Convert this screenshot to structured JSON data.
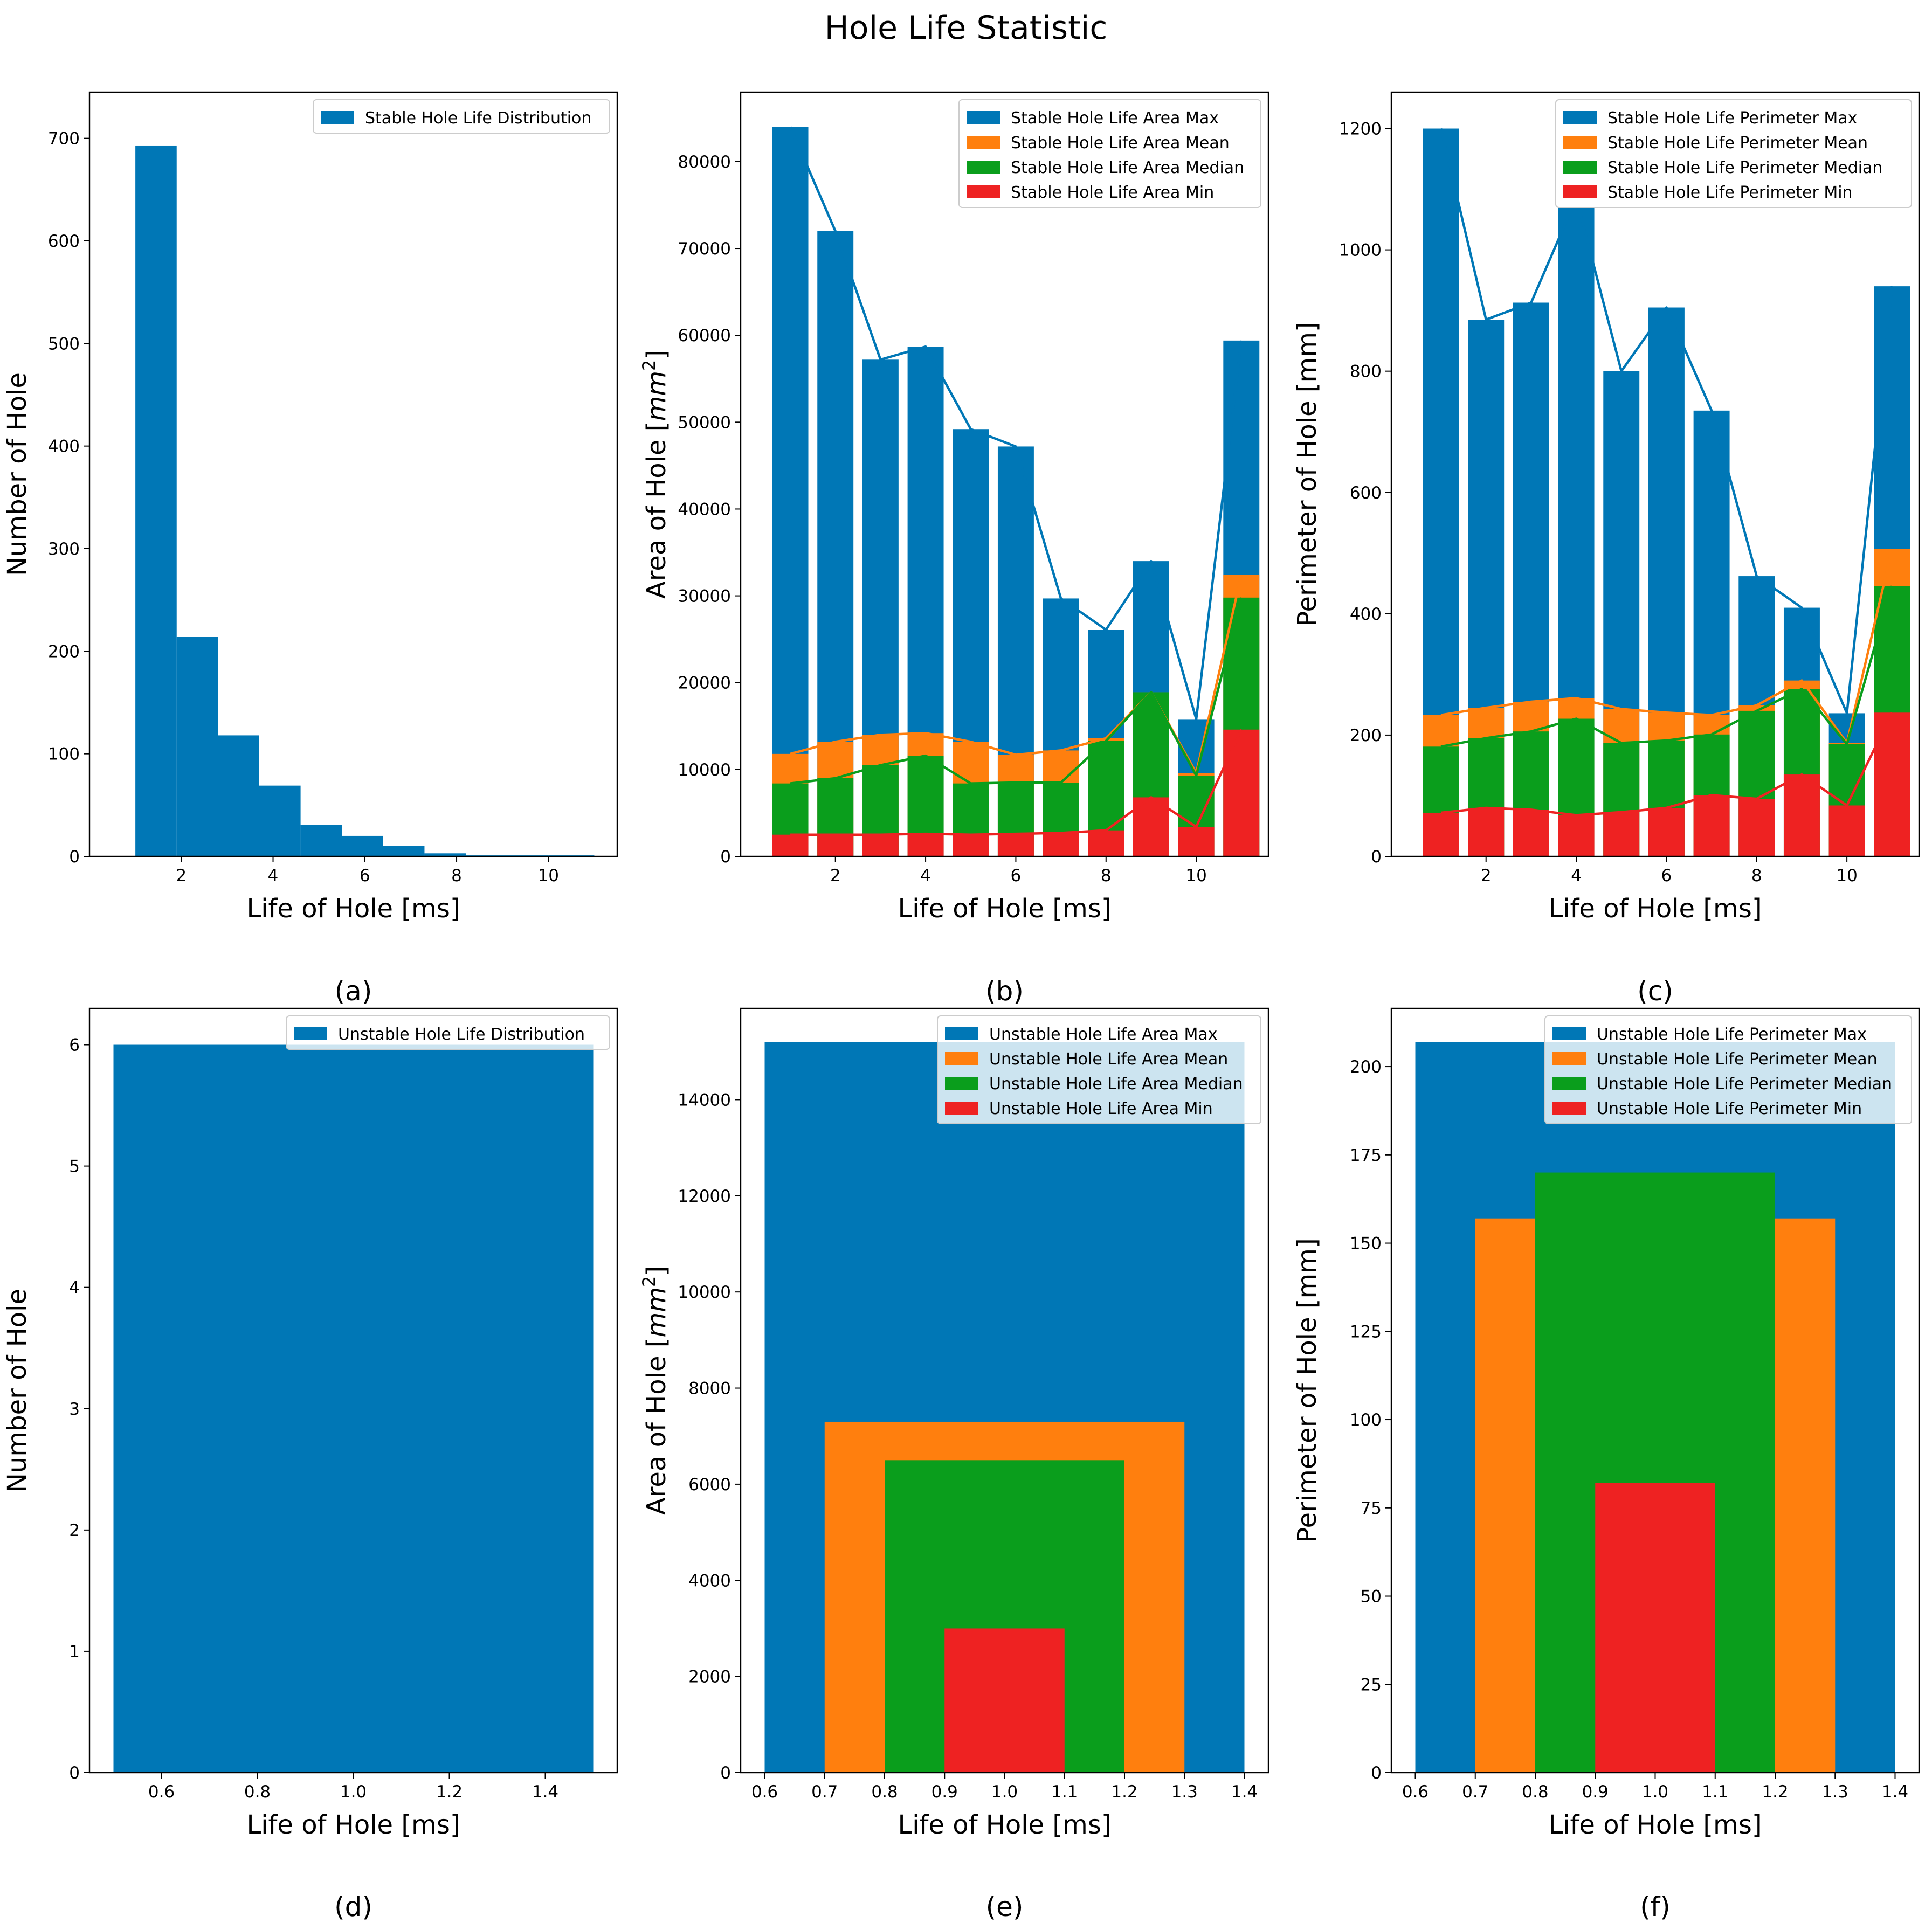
{
  "figure": {
    "title": "Hole Life Statistic"
  },
  "colors": {
    "max": "#0077b6",
    "mean": "#ff7f0e",
    "median": "#0a9e1c",
    "min": "#ee2222"
  },
  "chart_data": [
    {
      "id": "a",
      "type": "bar",
      "panel_label": "(a)",
      "xlabel": "Life of Hole [ms]",
      "ylabel": "Number of Hole",
      "xlim": [
        0,
        11.5
      ],
      "ylim": [
        0,
        745
      ],
      "xticks": [
        2,
        4,
        6,
        8,
        10
      ],
      "yticks": [
        0,
        100,
        200,
        300,
        400,
        500,
        600,
        700
      ],
      "legend_position": "top-right",
      "series": [
        {
          "name": "Stable Hole Life Distribution",
          "color": "max",
          "bars": [
            [
              1,
              1.9,
              693
            ],
            [
              1.9,
              2.8,
              214
            ],
            [
              2.8,
              3.7,
              118
            ],
            [
              3.7,
              4.6,
              69
            ],
            [
              4.6,
              5.5,
              31
            ],
            [
              5.5,
              6.4,
              20
            ],
            [
              6.4,
              7.3,
              10
            ],
            [
              7.3,
              8.2,
              3
            ],
            [
              8.2,
              9.1,
              1
            ],
            [
              9.1,
              10,
              1
            ],
            [
              10,
              11,
              1
            ]
          ]
        }
      ]
    },
    {
      "id": "b",
      "type": "bar",
      "panel_label": "(b)",
      "xlabel": "Life of Hole [ms]",
      "ylabel": "Area of Hole [mm^2]",
      "ylabel_parts": {
        "prefix": "Area of Hole [",
        "var": "mm",
        "sup": "2",
        "suffix": "]"
      },
      "xlim": [
        -0.1,
        11.6
      ],
      "ylim": [
        0,
        88000
      ],
      "xticks": [
        2,
        4,
        6,
        8,
        10
      ],
      "yticks": [
        0,
        10000,
        20000,
        30000,
        40000,
        50000,
        60000,
        70000,
        80000
      ],
      "legend_position": "top-right",
      "x": [
        1,
        2,
        3,
        4,
        5,
        6,
        7,
        8,
        9,
        10,
        11
      ],
      "bar_width": 0.8,
      "lines": true,
      "series": [
        {
          "name": "Stable Hole Life Area Max",
          "color": "max",
          "values": [
            84000,
            72000,
            57200,
            58700,
            49200,
            47200,
            29700,
            26100,
            34000,
            15800,
            59400
          ]
        },
        {
          "name": "Stable Hole Life Area Mean",
          "color": "mean",
          "values": [
            11800,
            13200,
            14000,
            14200,
            13200,
            11700,
            12200,
            13600,
            18900,
            9600,
            32400
          ]
        },
        {
          "name": "Stable Hole Life Area Median",
          "color": "median",
          "values": [
            8400,
            9000,
            10500,
            11600,
            8400,
            8500,
            8500,
            13300,
            18900,
            9300,
            29800
          ]
        },
        {
          "name": "Stable Hole Life Area Min",
          "color": "min",
          "values": [
            2500,
            2500,
            2500,
            2600,
            2500,
            2600,
            2700,
            3000,
            6800,
            3400,
            14600
          ]
        }
      ]
    },
    {
      "id": "c",
      "type": "bar",
      "panel_label": "(c)",
      "xlabel": "Life of Hole [ms]",
      "ylabel": "Perimeter of Hole [mm]",
      "xlim": [
        -0.1,
        11.6
      ],
      "ylim": [
        0,
        1260
      ],
      "xticks": [
        2,
        4,
        6,
        8,
        10
      ],
      "yticks": [
        0,
        200,
        400,
        600,
        800,
        1000,
        1200
      ],
      "legend_position": "top-right",
      "x": [
        1,
        2,
        3,
        4,
        5,
        6,
        7,
        8,
        9,
        10,
        11
      ],
      "bar_width": 0.8,
      "lines": true,
      "series": [
        {
          "name": "Stable Hole Life Perimeter Max",
          "color": "max",
          "values": [
            1200,
            885,
            913,
            1085,
            800,
            905,
            735,
            462,
            410,
            236,
            940
          ]
        },
        {
          "name": "Stable Hole Life Perimeter Mean",
          "color": "mean",
          "values": [
            233,
            245,
            255,
            261,
            243,
            237,
            233,
            249,
            290,
            187,
            507
          ]
        },
        {
          "name": "Stable Hole Life Perimeter Median",
          "color": "median",
          "values": [
            181,
            195,
            206,
            227,
            187,
            191,
            201,
            240,
            276,
            185,
            446
          ]
        },
        {
          "name": "Stable Hole Life Perimeter Min",
          "color": "min",
          "values": [
            72,
            80,
            77,
            68,
            73,
            80,
            101,
            95,
            135,
            84,
            237
          ]
        }
      ]
    },
    {
      "id": "d",
      "type": "bar",
      "panel_label": "(d)",
      "xlabel": "Life of Hole [ms]",
      "ylabel": "Number of Hole",
      "xlim": [
        0.45,
        1.55
      ],
      "ylim": [
        0,
        6.3
      ],
      "xticks": [
        0.6,
        0.8,
        1.0,
        1.2,
        1.4
      ],
      "yticks": [
        0,
        1,
        2,
        3,
        4,
        5,
        6
      ],
      "legend_position": "top-right",
      "series": [
        {
          "name": "Unstable Hole Life Distribution",
          "color": "max",
          "bars": [
            [
              0.5,
              1.5,
              6
            ]
          ]
        }
      ]
    },
    {
      "id": "e",
      "type": "bar",
      "panel_label": "(e)",
      "xlabel": "Life of Hole [ms]",
      "ylabel": "Area of Hole [mm^2]",
      "ylabel_parts": {
        "prefix": "Area of Hole [",
        "var": "mm",
        "sup": "2",
        "suffix": "]"
      },
      "xlim": [
        0.56,
        1.44
      ],
      "ylim": [
        0,
        15900
      ],
      "xticks": [
        0.6,
        0.7,
        0.8,
        0.9,
        1.0,
        1.1,
        1.2,
        1.3,
        1.4
      ],
      "yticks": [
        0,
        2000,
        4000,
        6000,
        8000,
        10000,
        12000,
        14000
      ],
      "legend_position": "top-right",
      "x": [
        1.0
      ],
      "bar_widths": [
        0.8,
        0.6,
        0.4,
        0.2
      ],
      "lines": false,
      "series": [
        {
          "name": "Unstable Hole Life Area Max",
          "color": "max",
          "values": [
            15200
          ]
        },
        {
          "name": "Unstable Hole Life Area Mean",
          "color": "mean",
          "values": [
            7300
          ]
        },
        {
          "name": "Unstable Hole Life Area Median",
          "color": "median",
          "values": [
            6500
          ]
        },
        {
          "name": "Unstable Hole Life Area Min",
          "color": "min",
          "values": [
            3000
          ]
        }
      ]
    },
    {
      "id": "f",
      "type": "bar",
      "panel_label": "(f)",
      "xlabel": "Life of Hole [ms]",
      "ylabel": "Perimeter of Hole [mm]",
      "xlim": [
        0.56,
        1.44
      ],
      "ylim": [
        0,
        216.5
      ],
      "xticks": [
        0.6,
        0.7,
        0.8,
        0.9,
        1.0,
        1.1,
        1.2,
        1.3,
        1.4
      ],
      "yticks": [
        0,
        25,
        50,
        75,
        100,
        125,
        150,
        175,
        200
      ],
      "legend_position": "top-right",
      "x": [
        1.0
      ],
      "bar_widths": [
        0.8,
        0.6,
        0.4,
        0.2
      ],
      "lines": false,
      "series": [
        {
          "name": "Unstable Hole Life Perimeter Max",
          "color": "max",
          "values": [
            207
          ]
        },
        {
          "name": "Unstable Hole Life Perimeter Mean",
          "color": "mean",
          "values": [
            157
          ]
        },
        {
          "name": "Unstable Hole Life Perimeter Median",
          "color": "median",
          "values": [
            170
          ]
        },
        {
          "name": "Unstable Hole Life Perimeter Min",
          "color": "min",
          "values": [
            82
          ]
        }
      ]
    }
  ]
}
